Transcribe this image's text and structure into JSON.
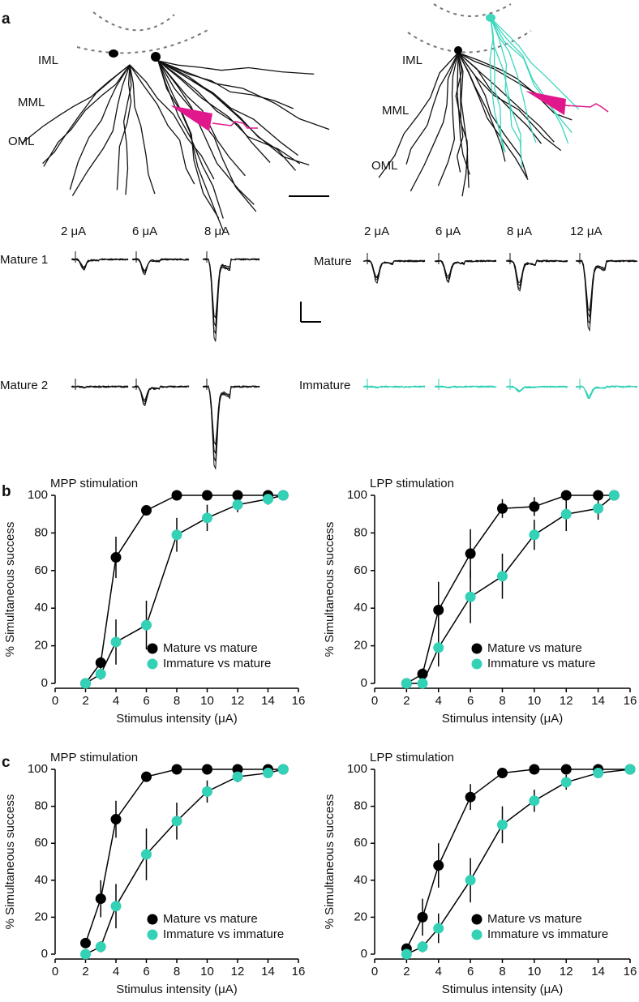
{
  "panel_a": {
    "label": "a",
    "left_layers": [
      "IML",
      "MML",
      "OML"
    ],
    "right_layers": [
      "IML",
      "MML",
      "OML"
    ],
    "left_currents": [
      "2 μA",
      "6 μA",
      "8 μA"
    ],
    "right_currents": [
      "2 μA",
      "6 μA",
      "8 μA",
      "12 μA"
    ],
    "left_rows": [
      "Mature 1",
      "Mature 2"
    ],
    "right_rows": [
      "Mature",
      "Immature"
    ]
  },
  "panel_labels": [
    "b",
    "c"
  ],
  "chart_data": [
    {
      "type": "line",
      "title": "MPP stimulation",
      "xlabel": "Stimulus intensity (μA)",
      "ylabel": "% Simultaneous success",
      "x": [
        2,
        3,
        4,
        6,
        8,
        10,
        12,
        14,
        15
      ],
      "xlim": [
        0,
        16
      ],
      "xticks": [
        0,
        2,
        4,
        6,
        8,
        10,
        12,
        14,
        16
      ],
      "ylim": [
        0,
        100
      ],
      "yticks": [
        0,
        20,
        40,
        60,
        80,
        100
      ],
      "legend": "lower right",
      "series": [
        {
          "name": "Mature vs mature",
          "color": "#000000",
          "values": [
            0,
            11,
            67,
            92,
            100,
            100,
            100,
            100,
            100
          ],
          "errors": [
            null,
            3,
            11,
            2,
            null,
            null,
            null,
            null,
            null
          ]
        },
        {
          "name": "Immature vs mature",
          "color": "#33d1b6",
          "values": [
            0,
            5,
            22,
            31,
            79,
            88,
            95,
            98,
            100
          ],
          "errors": [
            null,
            3,
            12,
            13,
            9,
            7,
            4,
            3,
            null
          ]
        }
      ]
    },
    {
      "type": "line",
      "title": "LPP stimulation",
      "xlabel": "Stimulus intensity (μA)",
      "ylabel": "% Simultaneous success",
      "x": [
        2,
        3,
        4,
        6,
        8,
        10,
        12,
        14,
        15
      ],
      "xlim": [
        0,
        16
      ],
      "xticks": [
        0,
        2,
        4,
        6,
        8,
        10,
        12,
        14,
        16
      ],
      "ylim": [
        0,
        100
      ],
      "yticks": [
        0,
        20,
        40,
        60,
        80,
        100
      ],
      "legend": "lower right",
      "series": [
        {
          "name": "Mature vs mature",
          "color": "#000000",
          "values": [
            0,
            5,
            39,
            69,
            93,
            94,
            100,
            100,
            100
          ],
          "errors": [
            null,
            3,
            15,
            13,
            5,
            5,
            null,
            null,
            null
          ]
        },
        {
          "name": "Immature vs mature",
          "color": "#33d1b6",
          "values": [
            0,
            0,
            19,
            46,
            57,
            79,
            90,
            93,
            100
          ],
          "errors": [
            null,
            null,
            10,
            14,
            12,
            8,
            9,
            6,
            null
          ]
        }
      ]
    },
    {
      "type": "line",
      "title": "MPP stimulation",
      "xlabel": "Stimulus intensity (μA)",
      "ylabel": "% Simultaneous success",
      "x": [
        2,
        3,
        4,
        6,
        8,
        10,
        12,
        14,
        15
      ],
      "xlim": [
        0,
        16
      ],
      "xticks": [
        0,
        2,
        4,
        6,
        8,
        10,
        12,
        14,
        16
      ],
      "ylim": [
        0,
        100
      ],
      "yticks": [
        0,
        20,
        40,
        60,
        80,
        100
      ],
      "legend": "lower right",
      "series": [
        {
          "name": "Mature vs mature",
          "color": "#000000",
          "values": [
            6,
            30,
            73,
            96,
            100,
            100,
            100,
            100,
            100
          ],
          "errors": [
            null,
            10,
            10,
            2,
            null,
            null,
            null,
            null,
            null
          ]
        },
        {
          "name": "Immature vs immature",
          "color": "#33d1b6",
          "values": [
            0,
            4,
            26,
            54,
            72,
            88,
            96,
            98,
            100
          ],
          "errors": [
            null,
            3,
            12,
            14,
            10,
            6,
            3,
            2,
            null
          ]
        }
      ]
    },
    {
      "type": "line",
      "title": "LPP stimulation",
      "xlabel": "Stimulus intensity (μA)",
      "ylabel": "% Simultaneous success",
      "x": [
        2,
        3,
        4,
        6,
        8,
        10,
        12,
        14,
        16
      ],
      "xlim": [
        0,
        16
      ],
      "xticks": [
        0,
        2,
        4,
        6,
        8,
        10,
        12,
        14,
        16
      ],
      "ylim": [
        0,
        100
      ],
      "yticks": [
        0,
        20,
        40,
        60,
        80,
        100
      ],
      "legend": "lower right",
      "series": [
        {
          "name": "Mature vs mature",
          "color": "#000000",
          "values": [
            3,
            20,
            48,
            85,
            98,
            100,
            100,
            100,
            100
          ],
          "errors": [
            null,
            10,
            12,
            7,
            2,
            null,
            null,
            null,
            null
          ]
        },
        {
          "name": "Immature vs immature",
          "color": "#33d1b6",
          "values": [
            0,
            4,
            14,
            40,
            70,
            83,
            93,
            98,
            100
          ],
          "errors": [
            null,
            3,
            8,
            12,
            10,
            6,
            4,
            2,
            null
          ]
        }
      ]
    }
  ]
}
